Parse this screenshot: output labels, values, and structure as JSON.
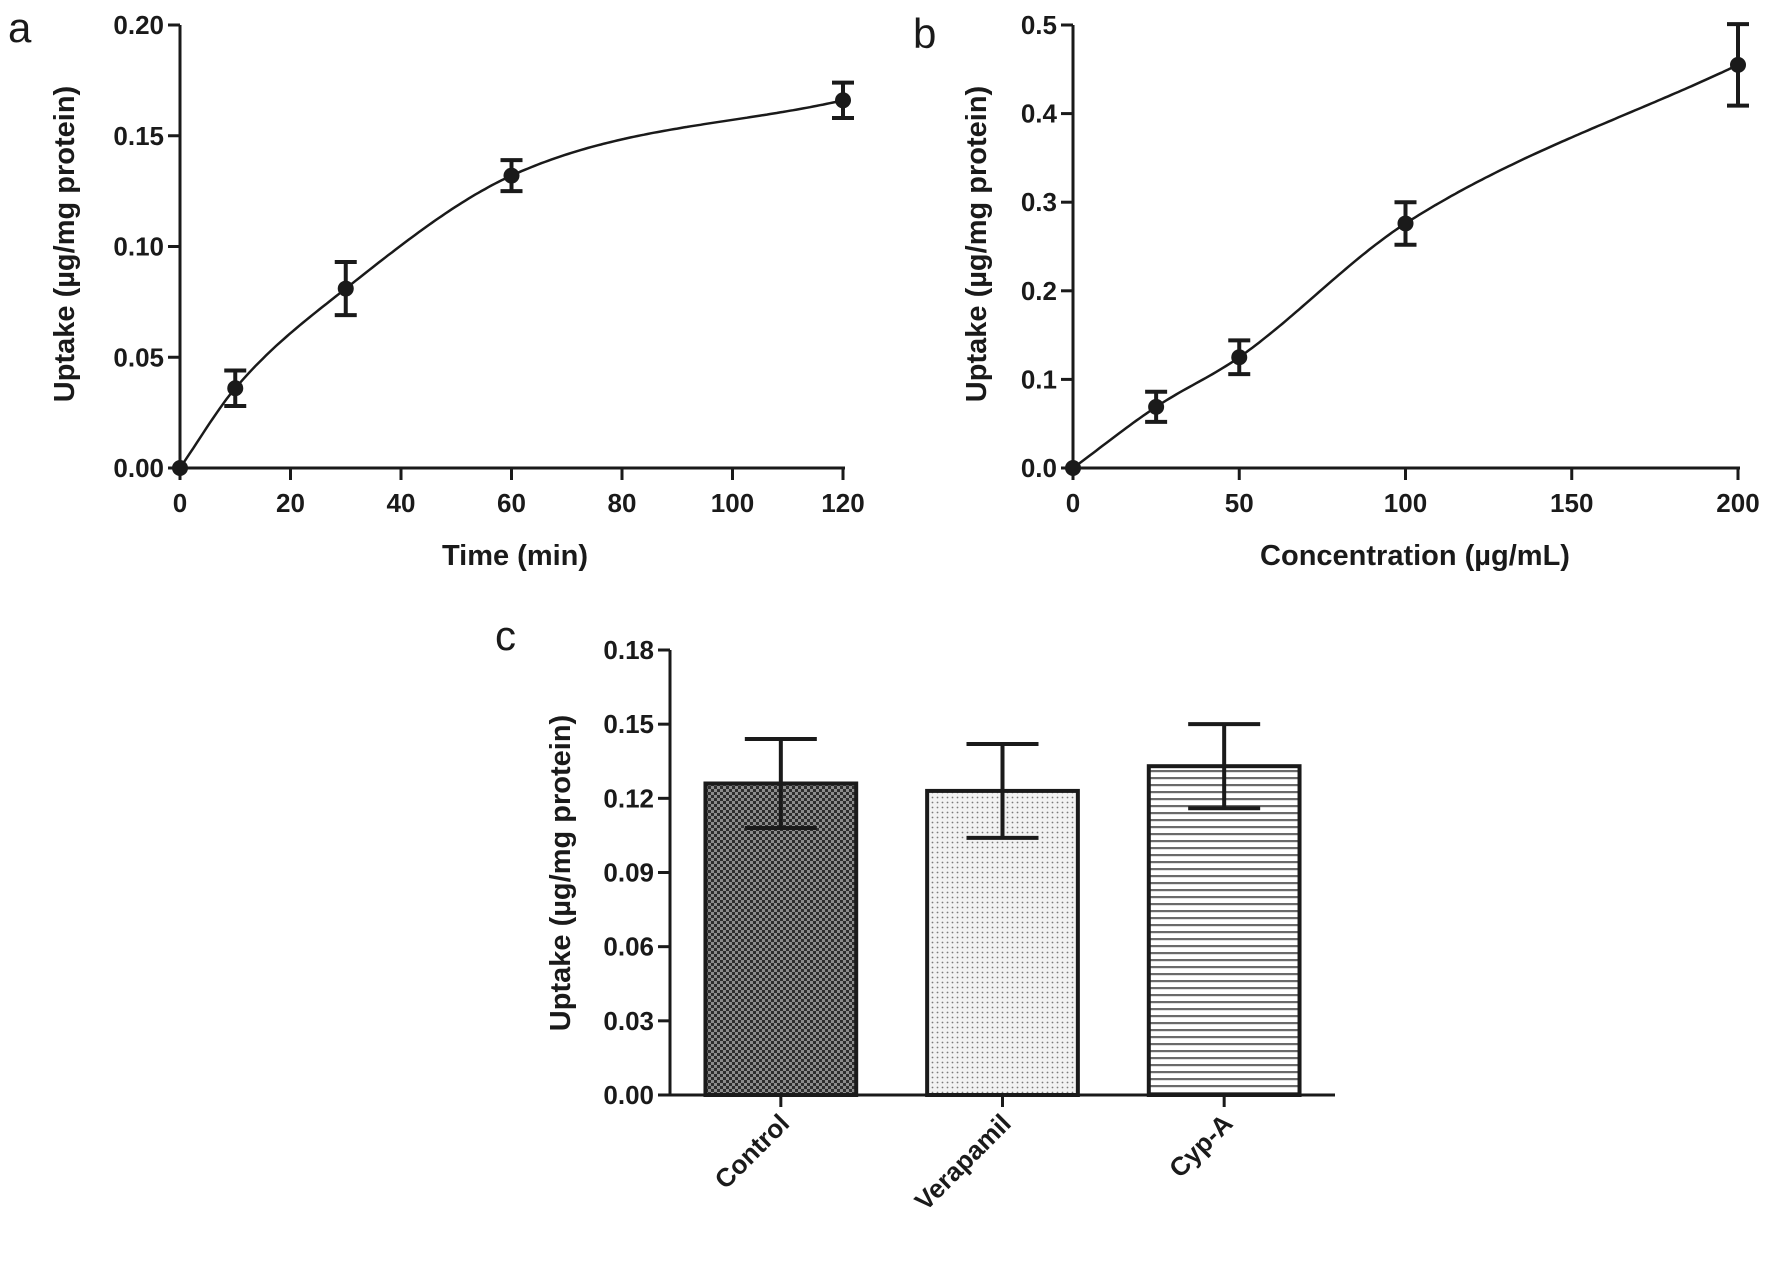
{
  "chart_data": [
    {
      "panel": "a",
      "type": "scatter",
      "xlabel": "Time (min)",
      "ylabel": "Uptake (µg/mg protein)",
      "xlim": [
        0,
        120
      ],
      "ylim": [
        0,
        0.2
      ],
      "xticks": [
        0,
        20,
        40,
        60,
        80,
        100,
        120
      ],
      "yticks": [
        0.0,
        0.05,
        0.1,
        0.15,
        0.2
      ],
      "xtick_labels": [
        "0",
        "20",
        "40",
        "60",
        "80",
        "100",
        "120"
      ],
      "ytick_labels": [
        "0.00",
        "0.05",
        "0.10",
        "0.15",
        "0.20"
      ],
      "points": [
        {
          "x": 0,
          "y": 0.0,
          "err": 0
        },
        {
          "x": 10,
          "y": 0.036,
          "err": 0.008
        },
        {
          "x": 30,
          "y": 0.081,
          "err": 0.012
        },
        {
          "x": 60,
          "y": 0.132,
          "err": 0.007
        },
        {
          "x": 120,
          "y": 0.166,
          "err": 0.008
        }
      ],
      "fit_curve": true
    },
    {
      "panel": "b",
      "type": "scatter",
      "xlabel": "Concentration (µg/mL)",
      "ylabel": "Uptake (µg/mg protein)",
      "xlim": [
        0,
        200
      ],
      "ylim": [
        0,
        0.5
      ],
      "xticks": [
        0,
        50,
        100,
        150,
        200
      ],
      "yticks": [
        0.0,
        0.1,
        0.2,
        0.3,
        0.4,
        0.5
      ],
      "xtick_labels": [
        "0",
        "50",
        "100",
        "150",
        "200"
      ],
      "ytick_labels": [
        "0.0",
        "0.1",
        "0.2",
        "0.3",
        "0.4",
        "0.5"
      ],
      "points": [
        {
          "x": 0,
          "y": 0.0,
          "err": 0
        },
        {
          "x": 25,
          "y": 0.069,
          "err": 0.017
        },
        {
          "x": 50,
          "y": 0.125,
          "err": 0.019
        },
        {
          "x": 100,
          "y": 0.276,
          "err": 0.024
        },
        {
          "x": 200,
          "y": 0.455,
          "err": 0.046
        }
      ],
      "fit_curve": true
    },
    {
      "panel": "c",
      "type": "bar",
      "xlabel": "",
      "ylabel": "Uptake (µg/mg protein)",
      "ylim": [
        0,
        0.18
      ],
      "yticks": [
        0.0,
        0.03,
        0.06,
        0.09,
        0.12,
        0.15,
        0.18
      ],
      "ytick_labels": [
        "0.00",
        "0.03",
        "0.06",
        "0.09",
        "0.12",
        "0.15",
        "0.18"
      ],
      "categories": [
        "Control",
        "Verapamil",
        "Cyp-A"
      ],
      "values": [
        0.126,
        0.123,
        0.133
      ],
      "errors": [
        0.018,
        0.019,
        0.017
      ],
      "patterns": [
        "crosshatch-dark",
        "dots-light",
        "horizontal-lines"
      ]
    }
  ]
}
